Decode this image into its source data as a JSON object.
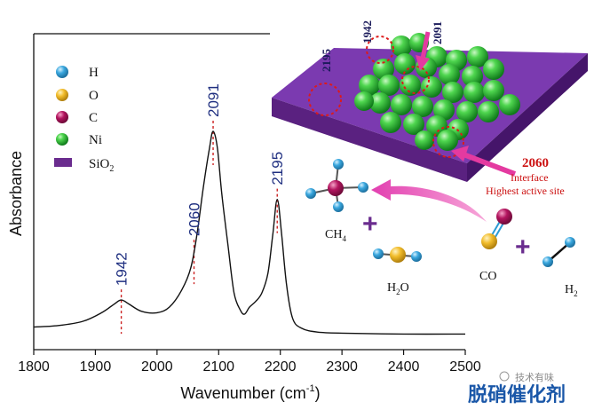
{
  "chart_data": {
    "type": "line",
    "xlabel": "Wavenumber (cm",
    "xlabel_sup": "-1",
    "xlabel_end": ")",
    "ylabel": "Absorbance",
    "xlim": [
      1800,
      2500
    ],
    "ylim": [
      0,
      1
    ],
    "x_ticks": [
      1800,
      1900,
      2000,
      2100,
      2200,
      2300,
      2400,
      2500
    ],
    "series": [
      {
        "x": [
          1800,
          1840,
          1880,
          1910,
          1930,
          1942,
          1955,
          1975,
          2000,
          2020,
          2040,
          2055,
          2065,
          2075,
          2085,
          2091,
          2098,
          2105,
          2115,
          2125,
          2135,
          2142,
          2150,
          2160,
          2170,
          2180,
          2188,
          2195,
          2202,
          2210,
          2220,
          2235,
          2260,
          2300,
          2400,
          2500
        ],
        "y": [
          0.03,
          0.035,
          0.05,
          0.08,
          0.11,
          0.125,
          0.11,
          0.085,
          0.08,
          0.1,
          0.16,
          0.24,
          0.36,
          0.52,
          0.66,
          0.72,
          0.66,
          0.5,
          0.32,
          0.15,
          0.09,
          0.075,
          0.1,
          0.12,
          0.15,
          0.22,
          0.36,
          0.48,
          0.36,
          0.18,
          0.06,
          0.025,
          0.012,
          0.008,
          0.005,
          0.005
        ]
      }
    ],
    "peak_labels": [
      {
        "x": 1942,
        "label": "1942"
      },
      {
        "x": 2060,
        "label": "2060"
      },
      {
        "x": 2091,
        "label": "2091"
      },
      {
        "x": 2195,
        "label": "2195"
      }
    ]
  },
  "legend": [
    {
      "label": "H",
      "color": "#3aa7de",
      "shape": "circle"
    },
    {
      "label": "O",
      "color": "#f2bd2c",
      "shape": "circle"
    },
    {
      "label": "C",
      "color": "#b3155f",
      "shape": "circle"
    },
    {
      "label": "Ni",
      "color": "#1fa02c",
      "shape": "circle"
    },
    {
      "label": "SiO",
      "sub": "2",
      "color": "#6a2c8e",
      "shape": "rect"
    }
  ],
  "schematic": {
    "site_labels": [
      "2195",
      "1942",
      "2091"
    ],
    "interface_label": "2060",
    "interface_text_1": "Interface",
    "interface_text_2": "Highest active site",
    "molecules": {
      "ch4": {
        "text": "CH",
        "sub": "4"
      },
      "h2o": {
        "pre": "H",
        "sub": "2",
        "post": "O"
      },
      "co": {
        "text": "CO"
      },
      "h2": {
        "text": "H",
        "sub": "2"
      }
    },
    "plus_sign": "+"
  },
  "watermark": {
    "line1": "技术有味",
    "line2": "脱硝催化剂",
    "accent": "#1a57a8"
  },
  "colors": {
    "curve": "#111111",
    "peak_marker": "#cc2222",
    "peak_label": "#1f2f80",
    "slab_top": "#7b3ab0",
    "slab_front": "#5a2180",
    "slab_side": "#45156a",
    "ni_sphere": "#33c53f",
    "arrow": "#e43aa0",
    "annotation_red": "#cc1111"
  }
}
